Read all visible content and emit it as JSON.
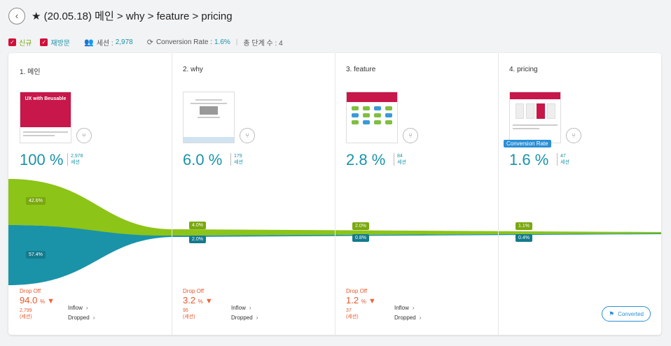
{
  "header": {
    "title": "★ (20.05.18) 메인 > why > feature > pricing",
    "back_icon": "‹"
  },
  "filters": {
    "new_label": "신규",
    "return_label": "재방문",
    "session_label": "세션 :",
    "session_value": "2,978",
    "conv_label": "Conversion Rate :",
    "conv_value": "1.6%",
    "steps_label": "총 단계 수 : 4"
  },
  "colors": {
    "new": "#8cc417",
    "return": "#1a93a8",
    "drop": "#e8572b",
    "brand": "#c8174a"
  },
  "steps": [
    {
      "title": "1. 메인",
      "pct": "100 %",
      "sessions": "2,978",
      "sess_unit": "세션",
      "new_label": "42.6%",
      "ret_label": "57.4%",
      "drop_label": "Drop Off",
      "drop_pct": "94.0",
      "drop_unit": "%",
      "drop_count": "2,799",
      "drop_count_unit": "(세션)",
      "inflow": "Inflow",
      "dropped": "Dropped",
      "hero_text": "UX with Beusable"
    },
    {
      "title": "2. why",
      "pct": "6.0 %",
      "sessions": "179",
      "sess_unit": "세션",
      "new_label": "4.0%",
      "ret_label": "2.0%",
      "drop_label": "Drop Off",
      "drop_pct": "3.2",
      "drop_unit": "%",
      "drop_count": "95",
      "drop_count_unit": "(세션)",
      "inflow": "Inflow",
      "dropped": "Dropped"
    },
    {
      "title": "3. feature",
      "pct": "2.8 %",
      "sessions": "84",
      "sess_unit": "세션",
      "new_label": "2.0%",
      "ret_label": "0.8%",
      "drop_label": "Drop Off",
      "drop_pct": "1.2",
      "drop_unit": "%",
      "drop_count": "37",
      "drop_count_unit": "(세션)",
      "inflow": "Inflow",
      "dropped": "Dropped"
    },
    {
      "title": "4. pricing",
      "pct": "1.6 %",
      "sessions": "47",
      "sess_unit": "세션",
      "new_label": "1.1%",
      "ret_label": "0.4%",
      "cr_badge": "Conversion Rate",
      "converted": "Converted"
    }
  ]
}
